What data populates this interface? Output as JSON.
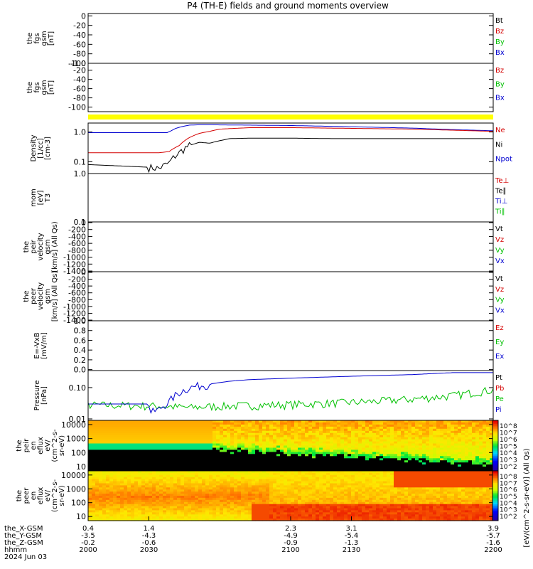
{
  "title": "P4 (TH-E) fields and ground moments overview",
  "colors": {
    "black": "#000000",
    "red": "#d40000",
    "green": "#00c000",
    "blue": "#0000d0",
    "yellow": "#ffff00"
  },
  "chart_data": [
    {
      "type": "line",
      "id": "fgs_gsm",
      "ylabel": [
        "the",
        "fgs",
        "gsm",
        "[nT]"
      ],
      "ylim": [
        -100,
        5
      ],
      "yticks": [
        0,
        -20,
        -40,
        -60,
        -80,
        -100
      ],
      "legend": [
        {
          "name": "Bt",
          "color": "black"
        },
        {
          "name": "Bz",
          "color": "red"
        },
        {
          "name": "By",
          "color": "green"
        },
        {
          "name": "Bx",
          "color": "blue"
        }
      ],
      "series": []
    },
    {
      "type": "line",
      "id": "fgs_gsm2",
      "ylabel": [
        "the",
        "fgs",
        "gsm",
        "[nT]"
      ],
      "ylim": [
        -110,
        -5
      ],
      "yticks": [
        -20,
        -40,
        -60,
        -80,
        -100
      ],
      "extra_tick": "-1.0",
      "legend": [
        {
          "name": "Bz",
          "color": "red"
        },
        {
          "name": "By",
          "color": "green"
        },
        {
          "name": "Bx",
          "color": "blue"
        }
      ],
      "series": []
    },
    {
      "type": "line",
      "id": "density",
      "ylabel": [
        "Density",
        "[1/cc]",
        "[cm-3]"
      ],
      "scale": "log",
      "ylim": [
        0.04,
        2
      ],
      "yticks": [
        1.0,
        0.1
      ],
      "legend": [
        {
          "name": "Ne",
          "color": "red"
        },
        {
          "name": "Ni",
          "color": "black"
        },
        {
          "name": "Npot",
          "color": "blue"
        }
      ],
      "series": [
        {
          "name": "Npot",
          "color": "blue",
          "x": [
            2000,
            2010,
            2020,
            2030,
            2039,
            2041,
            2043,
            2046,
            2050,
            2055,
            2060,
            2080,
            2100,
            2120,
            2140,
            2160,
            2180,
            2200
          ],
          "y": [
            0.95,
            0.95,
            0.95,
            0.95,
            0.95,
            1.1,
            1.3,
            1.5,
            1.7,
            1.75,
            1.75,
            1.7,
            1.65,
            1.55,
            1.45,
            1.35,
            1.2,
            1.1
          ]
        },
        {
          "name": "Ne",
          "color": "red",
          "x": [
            2000,
            2010,
            2020,
            2030,
            2035,
            2040,
            2045,
            2050,
            2055,
            2060,
            2065,
            2080,
            2100,
            2120,
            2140,
            2160,
            2180,
            2200
          ],
          "y": [
            0.2,
            0.2,
            0.2,
            0.2,
            0.2,
            0.22,
            0.35,
            0.65,
            0.9,
            1.05,
            1.25,
            1.4,
            1.4,
            1.35,
            1.3,
            1.25,
            1.15,
            1.05
          ]
        },
        {
          "name": "Ni",
          "color": "black",
          "x": [
            2000,
            2010,
            2020,
            2030,
            2035,
            2040,
            2045,
            2050,
            2055,
            2060,
            2070,
            2080,
            2100,
            2120,
            2140,
            2160,
            2180,
            2200
          ],
          "y": [
            0.08,
            0.075,
            0.07,
            0.065,
            0.06,
            0.09,
            0.2,
            0.35,
            0.45,
            0.42,
            0.6,
            0.62,
            0.62,
            0.6,
            0.6,
            0.6,
            0.6,
            0.6
          ],
          "noise_from": 2030,
          "noise_to": 2050
        }
      ]
    },
    {
      "type": "line",
      "id": "temp",
      "ylabel": [
        "mom",
        "[eV]",
        "T3"
      ],
      "scale": "log",
      "ylim": [
        0.1,
        1.0
      ],
      "yticks": [
        1.0,
        0.1
      ],
      "legend": [
        {
          "name": "Te⊥",
          "color": "red"
        },
        {
          "name": "Te∥",
          "color": "black"
        },
        {
          "name": "Ti⊥",
          "color": "blue"
        },
        {
          "name": "Ti∥",
          "color": "green"
        }
      ],
      "series": []
    },
    {
      "type": "line",
      "id": "peir_vel",
      "ylabel": [
        "the",
        "peir",
        "velocity",
        "gsm",
        "[km/s] (All Qs)"
      ],
      "ylim": [
        -1420,
        20
      ],
      "yticks": [
        0,
        -200,
        -400,
        -600,
        -800,
        -1000,
        -1200,
        -1400
      ],
      "legend": [
        {
          "name": "Vt",
          "color": "black"
        },
        {
          "name": "Vz",
          "color": "red"
        },
        {
          "name": "Vy",
          "color": "green"
        },
        {
          "name": "Vx",
          "color": "blue"
        }
      ],
      "series": []
    },
    {
      "type": "line",
      "id": "peer_vel",
      "ylabel": [
        "the",
        "peer",
        "velocity",
        "gsm",
        "[km/s] (All Qs)"
      ],
      "ylim": [
        -1420,
        20
      ],
      "yticks": [
        0,
        -200,
        -400,
        -600,
        -800,
        -1000,
        -1200,
        -1400
      ],
      "legend": [
        {
          "name": "Vt",
          "color": "black"
        },
        {
          "name": "Vz",
          "color": "red"
        },
        {
          "name": "Vy",
          "color": "green"
        },
        {
          "name": "Vx",
          "color": "blue"
        }
      ],
      "series": []
    },
    {
      "type": "line",
      "id": "efield",
      "ylabel": [
        "E=-VxB",
        "[mV/m]"
      ],
      "ylim": [
        -0.02,
        1.0
      ],
      "yticks": [
        1.0,
        0.8,
        0.6,
        0.4,
        0.2,
        0.0
      ],
      "legend": [
        {
          "name": "Ez",
          "color": "red"
        },
        {
          "name": "Ey",
          "color": "green"
        },
        {
          "name": "Ex",
          "color": "blue"
        }
      ],
      "series": []
    },
    {
      "type": "line",
      "id": "pressure",
      "ylabel": [
        "Pressure",
        "[nPa]"
      ],
      "scale": "log",
      "ylim": [
        0.009,
        0.35
      ],
      "yticks": [
        0.1,
        0.01
      ],
      "legend": [
        {
          "name": "Pt",
          "color": "black"
        },
        {
          "name": "Pb",
          "color": "red"
        },
        {
          "name": "Pe",
          "color": "green"
        },
        {
          "name": "Pi",
          "color": "blue"
        }
      ],
      "series": [
        {
          "name": "Pe",
          "color": "green",
          "x": [
            2000,
            2020,
            2030,
            2035,
            2040,
            2050,
            2060,
            2080,
            2100,
            2120,
            2140,
            2160,
            2180,
            2190,
            2200
          ],
          "y": [
            0.028,
            0.027,
            0.026,
            0.026,
            0.025,
            0.023,
            0.025,
            0.027,
            0.029,
            0.032,
            0.036,
            0.043,
            0.055,
            0.07,
            0.085
          ],
          "noise_from": 2000,
          "noise_to": 2200
        },
        {
          "name": "Pi",
          "color": "blue",
          "x": [
            2000,
            2015,
            2030,
            2031,
            2035,
            2040,
            2045,
            2050,
            2060,
            2070,
            2080,
            2100,
            2120,
            2140,
            2160,
            2170,
            2180,
            2190,
            2200
          ],
          "y": [
            0.03,
            0.03,
            0.03,
            0.016,
            0.02,
            0.035,
            0.07,
            0.1,
            0.13,
            0.16,
            0.18,
            0.2,
            0.22,
            0.24,
            0.26,
            0.28,
            0.3,
            0.3,
            0.3
          ],
          "noise_from": 2030,
          "noise_to": 2060
        }
      ]
    },
    {
      "type": "heatmap",
      "id": "peir_eflux",
      "ylabel": [
        "the",
        "peir",
        "en",
        "eflux",
        "eV/",
        "(cm^2-s-",
        "sr-eV)"
      ],
      "scale": "log",
      "ylim": [
        5,
        20000
      ],
      "yticks": [
        10000,
        1000,
        100,
        10
      ]
    },
    {
      "type": "heatmap",
      "id": "peer_eflux",
      "ylabel": [
        "the",
        "peer",
        "en",
        "eflux",
        "eV/",
        "(cm^2-s-",
        "sr-eV)"
      ],
      "scale": "log",
      "ylim": [
        5,
        20000
      ],
      "yticks": [
        10000,
        1000,
        100,
        10
      ]
    }
  ],
  "colorbar": {
    "label": "[eV/(cm^2-s-sr-eV)] (All Qs)",
    "ticks": [
      "10^8",
      "10^7",
      "10^6",
      "10^5",
      "10^4",
      "10^3",
      "10^2"
    ]
  },
  "xaxis": {
    "range": [
      2000,
      2200
    ],
    "row_labels": [
      "the_X-GSM",
      "the_Y-GSM",
      "the_Z-GSM",
      "hhmm",
      "2024 Jun 03"
    ],
    "ticks": [
      {
        "v": 2000,
        "x": "0.4",
        "y": "-3.5",
        "z": "-0.2",
        "t": "2000"
      },
      {
        "v": 2030,
        "x": "1.4",
        "y": "-4.3",
        "z": "-0.6",
        "t": "2030"
      },
      {
        "v": 2100,
        "x": "2.3",
        "y": "-4.9",
        "z": "-0.9",
        "t": "2100"
      },
      {
        "v": 2130,
        "x": "3.1",
        "y": "-5.4",
        "z": "-1.3",
        "t": "2130"
      },
      {
        "v": 2200,
        "x": "3.9",
        "y": "-5.7",
        "z": "-1.6",
        "t": "2200"
      }
    ]
  }
}
